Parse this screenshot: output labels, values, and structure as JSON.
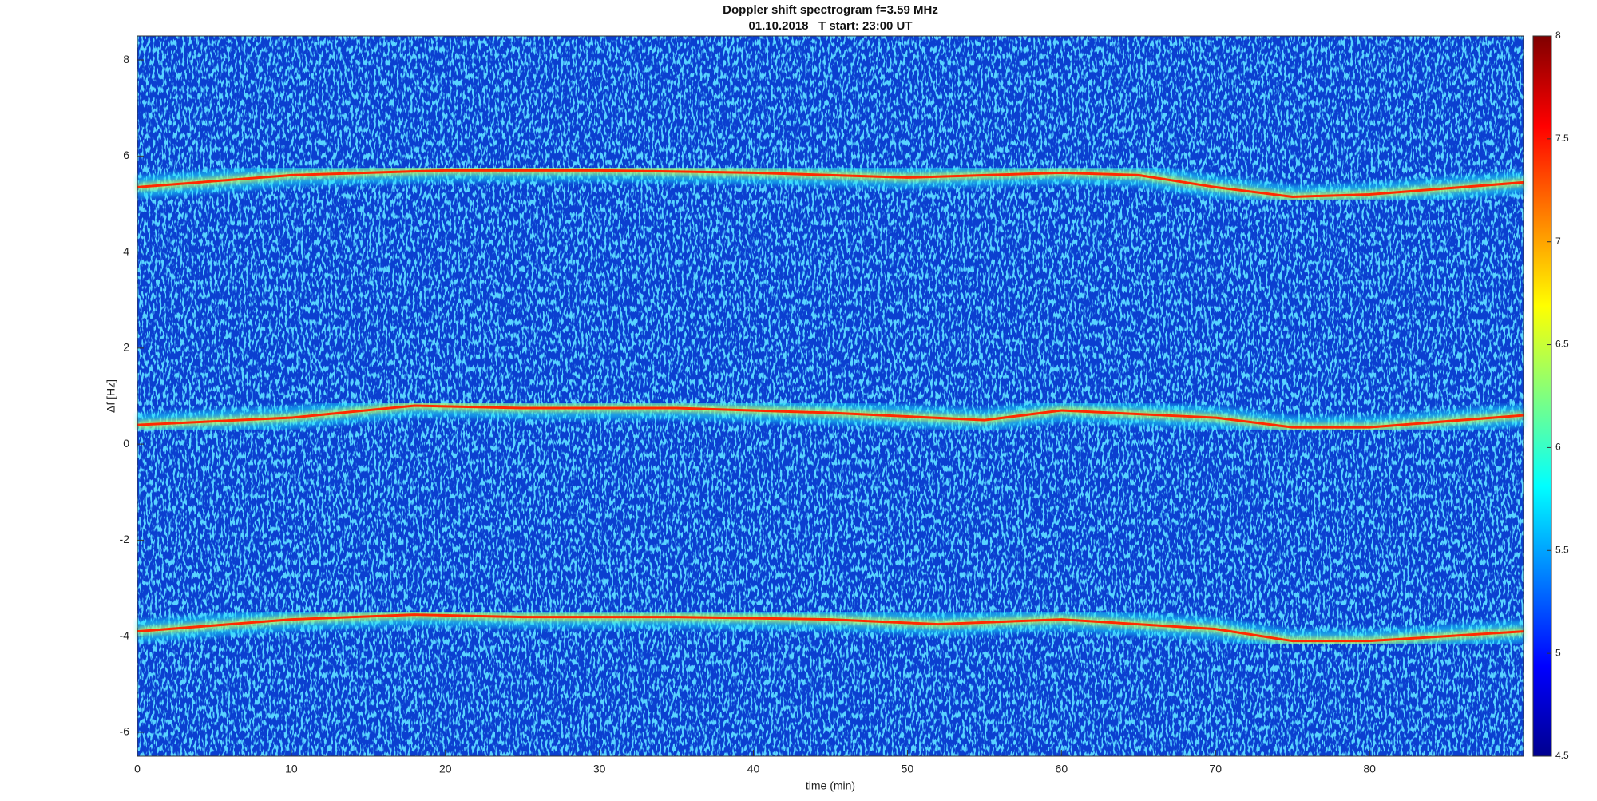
{
  "chart_data": {
    "type": "spectrogram",
    "title": "Doppler shift spectrogram f=3.59 MHz",
    "subtitle": "01.10.2018   T start: 23:00 UT",
    "x_label": "time (min)",
    "y_label": "Δf [Hz]",
    "xlim": [
      0,
      90
    ],
    "xticks": [
      0,
      10,
      20,
      30,
      40,
      50,
      60,
      70,
      80
    ],
    "ylim": [
      -6.5,
      8.5
    ],
    "yticks": [
      -6,
      -4,
      -2,
      0,
      2,
      4,
      6,
      8
    ],
    "clim": [
      4.5,
      8
    ],
    "cticks": [
      4.5,
      5,
      5.5,
      6,
      6.5,
      7,
      7.5,
      8
    ],
    "colormap": "jet",
    "series": [
      {
        "color": "#ff2a00",
        "x": [
          0,
          10,
          20,
          30,
          40,
          50,
          60,
          65,
          70,
          75,
          80,
          90
        ],
        "values": [
          5.35,
          5.6,
          5.7,
          5.7,
          5.65,
          5.55,
          5.65,
          5.6,
          5.35,
          5.15,
          5.2,
          5.45
        ]
      },
      {
        "color": "#ff2a00",
        "x": [
          0,
          10,
          18,
          25,
          35,
          45,
          55,
          60,
          70,
          75,
          80,
          90
        ],
        "values": [
          0.4,
          0.55,
          0.8,
          0.75,
          0.75,
          0.65,
          0.5,
          0.7,
          0.55,
          0.35,
          0.35,
          0.6
        ]
      },
      {
        "color": "#ff2a00",
        "x": [
          0,
          10,
          18,
          25,
          35,
          45,
          52,
          60,
          70,
          75,
          80,
          90
        ],
        "values": [
          -3.9,
          -3.65,
          -3.55,
          -3.6,
          -3.6,
          -3.65,
          -3.75,
          -3.65,
          -3.85,
          -4.1,
          -4.1,
          -3.9
        ]
      }
    ]
  }
}
